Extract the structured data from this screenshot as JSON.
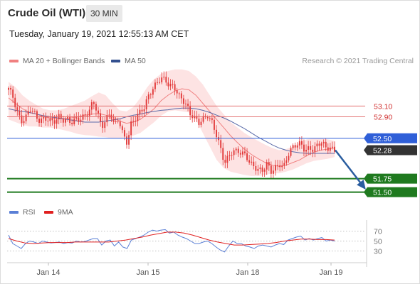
{
  "header": {
    "instrument": "Crude Oil (WTI)",
    "timeframe": "30 MIN",
    "datetime": "Tuesday, January 19, 2021 12:55:13 AM CET"
  },
  "legend": {
    "ma20_label": "MA 20 + Bollinger Bands",
    "ma50_label": "MA 50",
    "rsi_label": "RSI",
    "rsi_ma_label": "9MA"
  },
  "copyright": "Research © 2021 Trading Central",
  "colors": {
    "candle": "#e23a3a",
    "ma20": "#f08080",
    "bollinger_fill": "#fde3e3",
    "ma50": "#5a6aa8",
    "resistance": "#e06060",
    "pivot": "#2f5fd8",
    "support": "#1f7a1f",
    "current_price_bg": "#333333",
    "arrow": "#2a5d9f",
    "rsi": "#5a7fd6",
    "rsi_ma": "#e02020"
  },
  "chart_data": {
    "type": "candlestick",
    "x_labels": [
      "Jan 14",
      "Jan 15",
      "Jan 18",
      "Jan 19"
    ],
    "y_range": [
      51.35,
      53.75
    ],
    "current_price": 52.28,
    "pivot": 52.5,
    "resistances": [
      53.1,
      52.9
    ],
    "supports": [
      51.75,
      51.5
    ],
    "projection": "down",
    "price_path": [
      53.4,
      53.25,
      53.0,
      52.85,
      52.9,
      53.05,
      52.95,
      52.8,
      52.85,
      52.9,
      52.85,
      52.82,
      52.88,
      52.8,
      52.85,
      52.82,
      52.9,
      52.85,
      52.9,
      52.95,
      53.2,
      53.0,
      52.75,
      52.85,
      52.95,
      52.7,
      52.85,
      52.6,
      52.45,
      52.8,
      52.85,
      52.95,
      53.05,
      53.3,
      53.45,
      53.55,
      53.6,
      53.55,
      53.45,
      53.5,
      53.35,
      53.25,
      53.1,
      52.9,
      52.85,
      52.8,
      52.9,
      52.95,
      52.8,
      52.55,
      52.3,
      52.05,
      52.2,
      52.3,
      52.25,
      52.2,
      52.15,
      52.05,
      52.0,
      51.95,
      51.9,
      52.0,
      51.85,
      51.95,
      52.05,
      52.0,
      52.2,
      52.3,
      52.35,
      52.4,
      52.3,
      52.35,
      52.3,
      52.35,
      52.4,
      52.3,
      52.35,
      52.3
    ],
    "ma20_path": [
      53.25,
      53.15,
      53.05,
      52.98,
      52.95,
      52.9,
      52.88,
      52.87,
      52.86,
      52.88,
      52.9,
      52.93,
      52.95,
      52.96,
      52.93,
      52.9,
      52.82,
      52.78,
      52.8,
      52.85,
      52.95,
      53.05,
      53.2,
      53.3,
      53.38,
      53.42,
      53.4,
      53.3,
      53.15,
      53.0,
      52.85,
      52.7,
      52.55,
      52.42,
      52.3,
      52.2,
      52.12,
      52.05,
      52.0,
      51.98,
      52.0,
      52.05,
      52.1,
      52.18,
      52.24,
      52.28,
      52.3,
      52.32
    ],
    "bb_upper_path": [
      53.55,
      53.45,
      53.3,
      53.2,
      53.12,
      53.05,
      53.02,
      53.02,
      53.05,
      53.1,
      53.15,
      53.2,
      53.28,
      53.35,
      53.3,
      53.15,
      53.02,
      53.0,
      53.08,
      53.25,
      53.45,
      53.6,
      53.7,
      53.75,
      53.78,
      53.78,
      53.75,
      53.65,
      53.5,
      53.3,
      53.1,
      52.95,
      52.8,
      52.7,
      52.6,
      52.52,
      52.45,
      52.38,
      52.32,
      52.28,
      52.3,
      52.35,
      52.42,
      52.48,
      52.5,
      52.5,
      52.48,
      52.45
    ],
    "bb_lower_path": [
      52.85,
      52.8,
      52.75,
      52.72,
      52.72,
      52.7,
      52.7,
      52.68,
      52.65,
      52.62,
      52.58,
      52.56,
      52.55,
      52.53,
      52.52,
      52.5,
      52.5,
      52.52,
      52.55,
      52.6,
      52.7,
      52.8,
      52.92,
      53.0,
      53.02,
      53.0,
      52.98,
      52.85,
      52.6,
      52.35,
      52.1,
      51.95,
      51.88,
      51.85,
      51.82,
      51.8,
      51.8,
      51.82,
      51.85,
      51.85,
      51.88,
      51.92,
      51.98,
      52.04,
      52.08,
      52.1,
      52.12,
      52.15
    ],
    "ma50_path": [
      53.05,
      53.02,
      53.0,
      52.98,
      52.95,
      52.92,
      52.9,
      52.88,
      52.86,
      52.84,
      52.82,
      52.8,
      52.8,
      52.8,
      52.82,
      52.84,
      52.86,
      52.9,
      52.93,
      52.95,
      52.98,
      53.0,
      53.02,
      53.03,
      53.05,
      53.06,
      53.06,
      53.05,
      53.02,
      52.98,
      52.93,
      52.88,
      52.82,
      52.75,
      52.68,
      52.6,
      52.52,
      52.45,
      52.38,
      52.32,
      52.28,
      52.25,
      52.23,
      52.22,
      52.22,
      52.22,
      52.22,
      52.22
    ],
    "rsi": {
      "ticks": [
        70,
        50,
        30
      ],
      "y_range": [
        15,
        85
      ],
      "rsi_path": [
        62,
        45,
        40,
        35,
        45,
        50,
        48,
        45,
        50,
        48,
        46,
        47,
        48,
        45,
        47,
        46,
        50,
        48,
        49,
        52,
        55,
        55,
        42,
        50,
        52,
        40,
        48,
        38,
        35,
        52,
        55,
        58,
        62,
        68,
        72,
        70,
        72,
        73,
        66,
        68,
        62,
        58,
        55,
        50,
        45,
        45,
        48,
        50,
        45,
        38,
        32,
        28,
        40,
        50,
        45,
        45,
        40,
        38,
        35,
        40,
        42,
        40,
        38,
        42,
        45,
        43,
        52,
        55,
        58,
        60,
        52,
        55,
        52,
        55,
        57,
        50,
        52,
        50
      ],
      "ma_path": [
        55,
        50,
        46,
        45,
        46,
        47,
        47,
        47,
        48,
        48,
        48,
        48,
        48,
        50,
        52,
        55,
        58,
        62,
        65,
        68,
        68,
        66,
        62,
        57,
        52,
        48,
        45,
        42,
        42,
        43,
        44,
        45,
        47,
        50,
        52,
        54,
        54,
        53,
        53,
        52
      ]
    }
  }
}
